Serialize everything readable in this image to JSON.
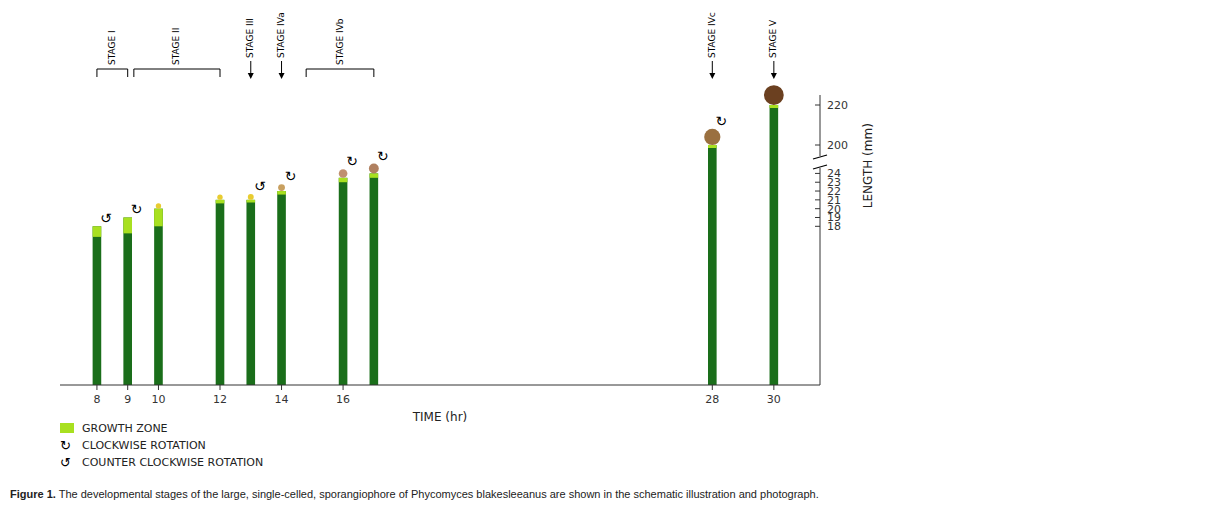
{
  "chart_data": {
    "type": "bar",
    "x": [
      8,
      9,
      10,
      12,
      13,
      14,
      16,
      17,
      28,
      30
    ],
    "series": [
      {
        "values": [
          18,
          19,
          20,
          21,
          21,
          22,
          23.5,
          24,
          200,
          220
        ],
        "color": "#1a6e1a"
      },
      {
        "name": "GROWTH ZONE",
        "values": [
          1.2,
          1.8,
          2.0,
          0.4,
          0.3,
          0.4,
          0.5,
          0.5,
          1.5,
          1.5
        ],
        "color": "#a8e020"
      }
    ],
    "sporangia": {
      "sizes": [
        0,
        0,
        0.3,
        0.3,
        0.33,
        0.38,
        0.48,
        0.55,
        0.9,
        1.1
      ],
      "colors": [
        "none",
        "none",
        "#e8cc30",
        "#e8cc30",
        "#e8cc30",
        "#c8a060",
        "#c09070",
        "#b08060",
        "#9a7040",
        "#6b4020"
      ]
    },
    "rotations": {
      "x": [
        8,
        9,
        13,
        14,
        16,
        17,
        28
      ],
      "direction": [
        "ccw",
        "cw",
        "ccw",
        "cw",
        "cw",
        "cw",
        "cw"
      ]
    },
    "rotation_legend": [
      {
        "direction": "cw",
        "symbol": "↻",
        "label": "CLOCKWISE ROTATION"
      },
      {
        "direction": "ccw",
        "symbol": "↺",
        "label": "COUNTER CLOCKWISE ROTATION"
      }
    ],
    "annotations": [
      {
        "text": "STAGE I",
        "x": [
          8,
          9
        ]
      },
      {
        "text": "STAGE II",
        "x": [
          9.2,
          12
        ]
      },
      {
        "text": "STAGE III",
        "x": 13
      },
      {
        "text": "STAGE IVa",
        "x": 14
      },
      {
        "text": "STAGE IVb",
        "x": [
          14.8,
          17
        ]
      },
      {
        "text": "STAGE IVc",
        "x": 28
      },
      {
        "text": "STAGE V",
        "x": 30
      }
    ],
    "xlabel": "TIME (hr)",
    "ylabel": "LENGTH (mm)",
    "xlim": [
      6.8,
      31.5
    ],
    "xticks": [
      8,
      9,
      10,
      12,
      14,
      16,
      28,
      30
    ],
    "ylim": [
      0,
      225
    ],
    "ybreak": [
      24.5,
      195
    ],
    "yticks": [
      18,
      19,
      20,
      21,
      22,
      23,
      24,
      200,
      220
    ],
    "grid": false,
    "caption": {
      "bold": "Figure 1.",
      "text": " The developmental stages of the large, single-celled, sporangiophore of Phycomyces blakesleeanus are shown in the schematic illustration and photograph."
    }
  }
}
